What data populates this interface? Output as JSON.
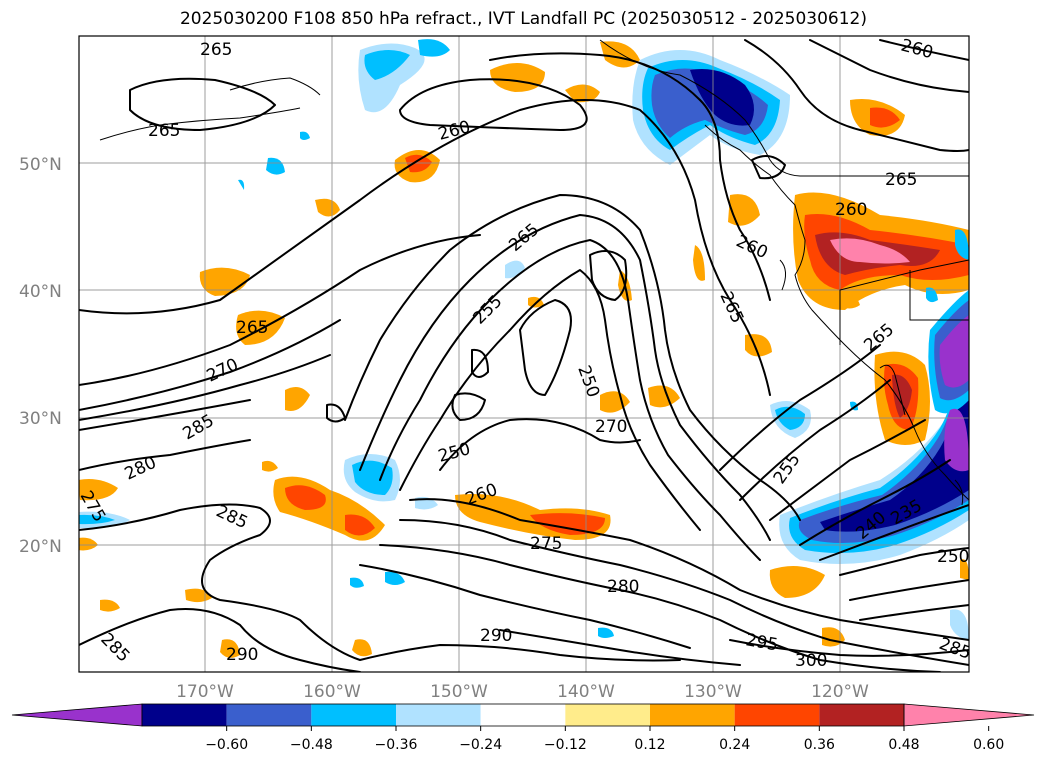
{
  "title": "2025030200 F108 850 hPa refract., IVT Landfall PC (2025030512 - 2025030612)",
  "lat_ticks": [
    "50°N",
    "40°N",
    "30°N",
    "20°N"
  ],
  "lon_ticks": [
    "170°W",
    "160°W",
    "150°W",
    "140°W",
    "130°W",
    "120°W"
  ],
  "colorbar": {
    "ticks": [
      "−0.60",
      "−0.48",
      "−0.36",
      "−0.24",
      "−0.12",
      "0.12",
      "0.24",
      "0.36",
      "0.48",
      "0.60"
    ],
    "colors": [
      "#9932cc",
      "#00008b",
      "#3a5fcd",
      "#00bfff",
      "#b0e2ff",
      "#ffffff",
      "#ffec8b",
      "#ffa500",
      "#ff4500",
      "#b22222",
      "#ff82ab"
    ]
  },
  "contour_labels": [
    "265",
    "260",
    "265",
    "260",
    "265",
    "255",
    "265",
    "260",
    "260",
    "265",
    "265",
    "270",
    "265",
    "250",
    "255",
    "285",
    "280",
    "270",
    "285",
    "250",
    "260",
    "275",
    "275",
    "240",
    "235",
    "250",
    "280",
    "290",
    "295",
    "300",
    "285",
    "290",
    "285"
  ]
}
